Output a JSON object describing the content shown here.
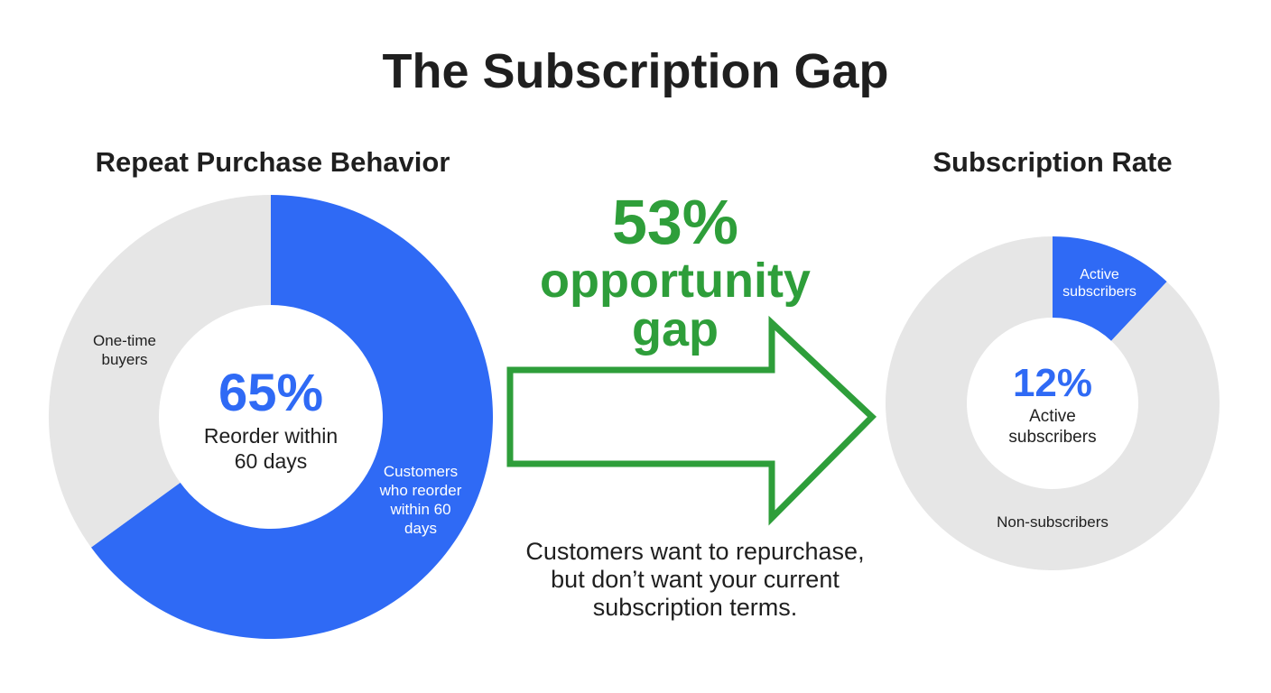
{
  "title": "The Subscription Gap",
  "colors": {
    "primary": "#2f6af5",
    "track": "#e6e6e6",
    "accent": "#2e9e3a",
    "text": "#1f1f1f"
  },
  "chart_data": [
    {
      "type": "pie",
      "variant": "donut",
      "title": "Repeat Purchase Behavior",
      "slices": [
        {
          "label": "Customers who reorder within 60 days",
          "value": 65,
          "color": "#2f6af5"
        },
        {
          "label": "One-time buyers",
          "value": 35,
          "color": "#e6e6e6"
        }
      ],
      "center_value": "65%",
      "center_label_lines": [
        "Reorder within",
        "60 days"
      ],
      "slice_label_lines": {
        "primary": [
          "Customers",
          "who reorder",
          "within 60",
          "days"
        ],
        "secondary": [
          "One-time",
          "buyers"
        ]
      }
    },
    {
      "type": "pie",
      "variant": "donut",
      "title": "Subscription Rate",
      "slices": [
        {
          "label": "Active subscribers",
          "value": 12,
          "color": "#2f6af5"
        },
        {
          "label": "Non-subscribers",
          "value": 88,
          "color": "#e6e6e6"
        }
      ],
      "center_value": "12%",
      "center_label_lines": [
        "Active",
        "subscribers"
      ],
      "slice_label_lines": {
        "primary": [
          "Active",
          "subscribers"
        ],
        "secondary": [
          "Non-subscribers"
        ]
      }
    }
  ],
  "gap": {
    "value": "53%",
    "line1": "opportunity",
    "line2": "gap"
  },
  "note_lines": [
    "Customers want to repurchase,",
    "but don’t want your current",
    "subscription terms."
  ]
}
